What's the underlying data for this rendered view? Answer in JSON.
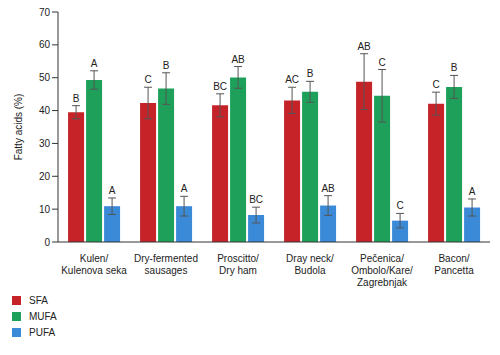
{
  "chart_data": {
    "type": "bar",
    "y_label": "Fatty acids (%)",
    "categories": [
      "Kulen/\nKulenova seka",
      "Dry-fermented\nsausages",
      "Proscitto/\nDry ham",
      "Dray neck/\nBudola",
      "Pečenica/\nOmbolo/Kare/\nZagrebnjak",
      "Bacon/\nPancetta"
    ],
    "series": [
      {
        "name": "SFA",
        "color": "#c62329",
        "values": [
          39.5,
          42.3,
          41.6,
          43.1,
          48.8,
          42.1
        ],
        "errors": [
          2,
          4.8,
          3.5,
          4,
          8.5,
          3.5
        ],
        "letters": [
          "B",
          "C",
          "BC",
          "AC",
          "AB",
          "C"
        ]
      },
      {
        "name": "MUFA",
        "color": "#1ea05b",
        "values": [
          49.3,
          46.7,
          50.1,
          45.7,
          44.5,
          47.2
        ],
        "errors": [
          2.8,
          4.8,
          3.3,
          3.2,
          8,
          3.5
        ],
        "letters": [
          "A",
          "B",
          "AB",
          "B",
          "C",
          "B"
        ]
      },
      {
        "name": "PUFA",
        "color": "#3b8ad8",
        "values": [
          10.9,
          10.9,
          8.2,
          11.1,
          6.5,
          10.5
        ],
        "errors": [
          2.5,
          3,
          2.4,
          3,
          2.2,
          2.6
        ],
        "letters": [
          "A",
          "A",
          "BC",
          "AB",
          "C",
          "A"
        ]
      }
    ],
    "ylim": [
      0,
      70
    ],
    "yticks": [
      0,
      10,
      20,
      30,
      40,
      50,
      60,
      70
    ],
    "grid": false,
    "legend": "bottom-left"
  }
}
